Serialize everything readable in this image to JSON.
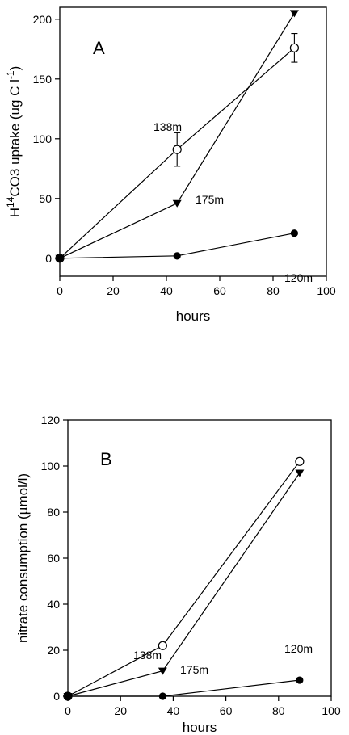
{
  "chart_data": [
    {
      "type": "line",
      "panel_label": "A",
      "xlabel": "hours",
      "ylabel_prefix": "H",
      "ylabel_sup1": "14",
      "ylabel_mid": "CO3 uptake (ug C l",
      "ylabel_sup2": "-1",
      "ylabel_suffix": ")",
      "xlim": [
        0,
        100
      ],
      "ylim": [
        -15,
        210
      ],
      "xticks": [
        "0",
        "20",
        "40",
        "60",
        "80",
        "100"
      ],
      "yticks": [
        "0",
        "50",
        "100",
        "150",
        "200"
      ],
      "series": [
        {
          "name": "138m",
          "marker": "open-circle",
          "x": [
            0,
            44,
            88
          ],
          "y": [
            0,
            91,
            176
          ],
          "err": [
            0,
            14,
            12
          ]
        },
        {
          "name": "175m",
          "marker": "filled-triangle-down",
          "x": [
            0,
            44,
            88
          ],
          "y": [
            0,
            46,
            205
          ]
        },
        {
          "name": "120m",
          "marker": "filled-circle",
          "x": [
            0,
            44,
            88
          ],
          "y": [
            0,
            2,
            21
          ]
        }
      ]
    },
    {
      "type": "line",
      "panel_label": "B",
      "xlabel": "hours",
      "ylabel": "nitrate consumption (µmol/l)",
      "xlim": [
        0,
        100
      ],
      "ylim": [
        0,
        120
      ],
      "xticks": [
        "0",
        "20",
        "40",
        "60",
        "80",
        "100"
      ],
      "yticks": [
        "0",
        "20",
        "40",
        "60",
        "80",
        "100",
        "120"
      ],
      "series": [
        {
          "name": "138m",
          "marker": "open-circle",
          "x": [
            0,
            36,
            88
          ],
          "y": [
            0,
            22,
            102
          ]
        },
        {
          "name": "175m",
          "marker": "filled-triangle-down",
          "x": [
            0,
            36,
            88
          ],
          "y": [
            0,
            11,
            97
          ]
        },
        {
          "name": "120m",
          "marker": "filled-circle",
          "x": [
            0,
            36,
            88
          ],
          "y": [
            0,
            0,
            7
          ]
        }
      ]
    }
  ]
}
